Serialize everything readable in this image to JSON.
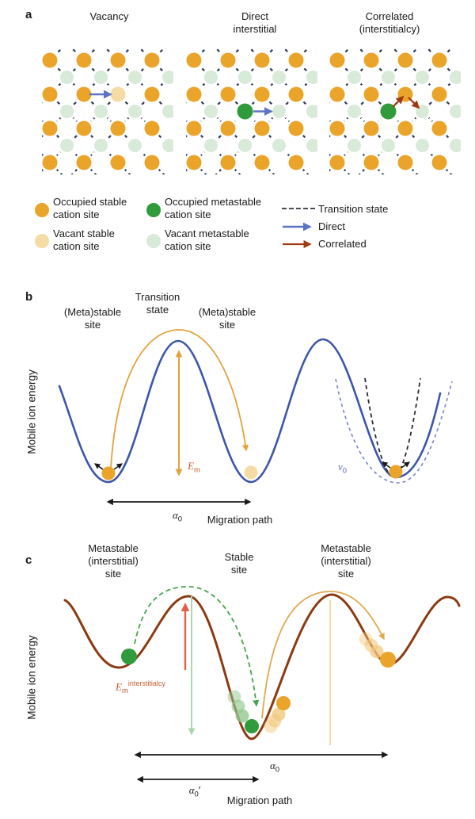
{
  "figure": {
    "panel_a": {
      "letter": "a",
      "titles": {
        "vacancy": "Vacancy",
        "direct_line1": "Direct",
        "direct_line2": "interstitial",
        "correlated_line1": "Correlated",
        "correlated_line2": "(interstitialcy)"
      },
      "legend": {
        "occupied_stable_line1": "Occupied stable",
        "occupied_stable_line2": "cation site",
        "vacant_stable_line1": "Vacant stable",
        "vacant_stable_line2": "cation site",
        "occupied_metastable_line1": "Occupied metastable",
        "occupied_metastable_line2": "cation site",
        "vacant_metastable_line1": "Vacant metastable",
        "vacant_metastable_line2": "cation site",
        "transition_state": "Transition state",
        "direct": "Direct",
        "correlated": "Correlated"
      }
    },
    "panel_b": {
      "letter": "b",
      "y_axis_label": "Mobile ion energy",
      "site_left_line1": "(Meta)stable",
      "site_left_line2": "site",
      "transition_line1": "Transition",
      "transition_line2": "state",
      "site_right_line1": "(Meta)stable",
      "site_right_line2": "site",
      "em_symbol": "E",
      "em_subscript": "m",
      "nu_symbol": "ν",
      "nu_subscript": "0",
      "alpha_symbol": "α",
      "alpha_subscript": "0",
      "migration_path": "Migration path"
    },
    "panel_c": {
      "letter": "c",
      "y_axis_label": "Mobile ion energy",
      "site_left_line1": "Metastable",
      "site_left_line2": "(interstitial)",
      "site_left_line3": "site",
      "site_center_line1": "Stable",
      "site_center_line2": "site",
      "site_right_line1": "Metastable",
      "site_right_line2": "(interstitial)",
      "site_right_line3": "site",
      "em_symbol": "E",
      "em_subscript": "m",
      "em_superscript": "interstitialcy",
      "alpha_symbol": "α",
      "alpha_subscript": "0",
      "alpha_prime_symbol": "α",
      "alpha_prime_subscript": "0",
      "alpha_prime_mark": "′",
      "migration_path": "Migration path"
    }
  },
  "colors": {
    "text": "#1A1A1A",
    "occupied_stable": "#EAA42A",
    "vacant_stable": "#F5DCA4",
    "occupied_metastable": "#2F9B3A",
    "vacant_metastable": "#D8EAD8",
    "lattice_dash": "#2E3D56",
    "legend_dash": "#4A4A55",
    "direct_arrow": "#5B74C4",
    "correlated_arrow": "#A03A12",
    "curve_b": "#3D56A8",
    "jump_arc_b": "#E3A23C",
    "em_text_b": "#BE5B2E",
    "nu_text": "#5565B5",
    "dashed_parabola_dark": "#2A2A33",
    "dashed_parabola_blue": "#7583C4",
    "curve_c": "#8B3A12",
    "green_arc": "#46A34E",
    "em_arrow_c": "#E0604A",
    "em_drop_arrow": "#A8D8AC",
    "jump_arc_c": "#DFA94E",
    "drop_line_c": "#F2D296",
    "trail_green": "#93C88E",
    "trail_orange": "#F1C97E"
  }
}
